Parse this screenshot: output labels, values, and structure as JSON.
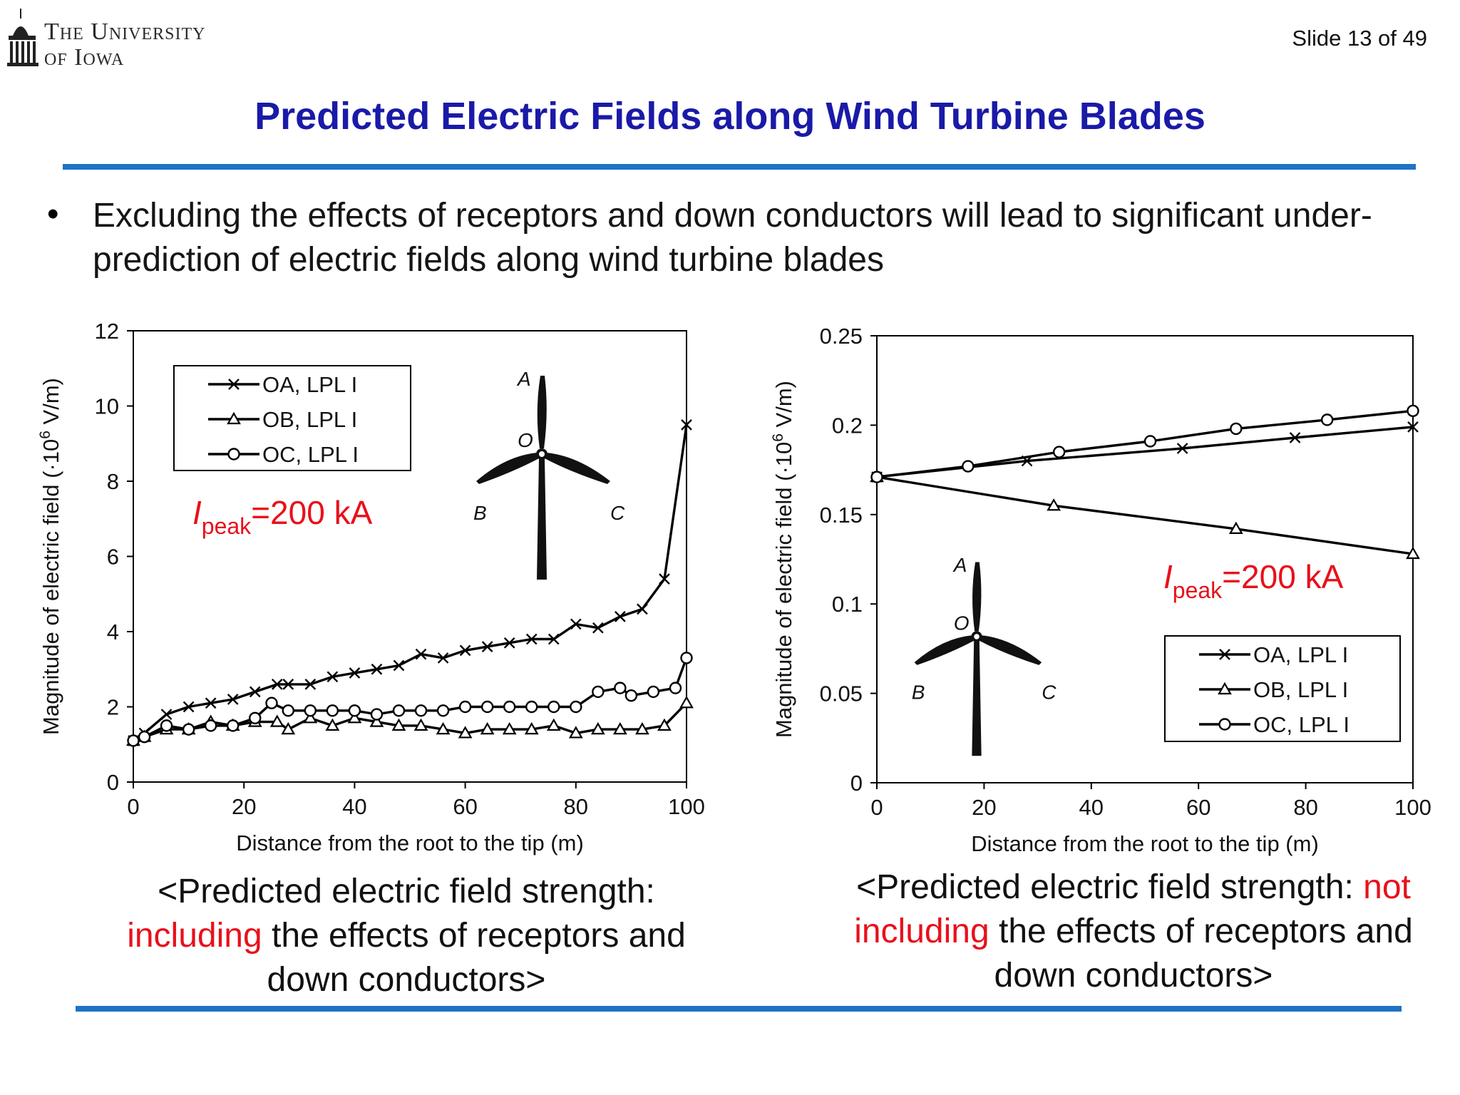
{
  "header": {
    "logo_line1": "The University",
    "logo_line2": "of Iowa",
    "slide_number": "Slide 13 of 49",
    "title": "Predicted Electric Fields along Wind Turbine Blades"
  },
  "bullet": "Excluding the effects of receptors and down conductors will lead to significant under-prediction of electric fields along wind turbine blades",
  "captions": {
    "left": {
      "pre": "<Predicted electric field strength: ",
      "red": "including",
      "post": " the effects of receptors and down conductors>"
    },
    "right": {
      "pre": "<Predicted electric field strength: ",
      "red": "not including",
      "post": " the effects of receptors and down conductors>"
    }
  },
  "chart_data": [
    {
      "type": "line",
      "xlabel": "Distance from the root to the tip (m)",
      "ylabel_pre": "Magnitude of electric field (·10",
      "ylabel_sup": "6",
      "ylabel_post": " V/m)",
      "xlim": [
        0,
        100
      ],
      "ylim": [
        0,
        12
      ],
      "xticks": [
        "0",
        "20",
        "40",
        "60",
        "80",
        "100"
      ],
      "yticks": [
        "0",
        "2",
        "4",
        "6",
        "8",
        "10",
        "12"
      ],
      "legend_placement": "top-left",
      "annotation": {
        "italic": "I",
        "sub": "peak",
        "text": "=200 kA"
      },
      "turbine_labels": [
        "A",
        "O",
        "B",
        "C"
      ],
      "series": [
        {
          "name": "OA, LPL I",
          "marker": "x",
          "x": [
            0,
            2,
            6,
            10,
            14,
            18,
            22,
            26,
            28,
            32,
            36,
            40,
            44,
            48,
            52,
            56,
            60,
            64,
            68,
            72,
            76,
            80,
            84,
            88,
            92,
            96,
            100
          ],
          "y": [
            1.1,
            1.3,
            1.8,
            2.0,
            2.1,
            2.2,
            2.4,
            2.6,
            2.6,
            2.6,
            2.8,
            2.9,
            3.0,
            3.1,
            3.4,
            3.3,
            3.5,
            3.6,
            3.7,
            3.8,
            3.8,
            4.2,
            4.1,
            4.4,
            4.6,
            5.4,
            9.5
          ]
        },
        {
          "name": "OB, LPL I",
          "marker": "triangle",
          "x": [
            0,
            2,
            6,
            10,
            14,
            18,
            22,
            26,
            28,
            32,
            36,
            40,
            44,
            48,
            52,
            56,
            60,
            64,
            68,
            72,
            76,
            80,
            84,
            88,
            92,
            96,
            100
          ],
          "y": [
            1.1,
            1.2,
            1.4,
            1.4,
            1.6,
            1.5,
            1.6,
            1.6,
            1.4,
            1.7,
            1.5,
            1.7,
            1.6,
            1.5,
            1.5,
            1.4,
            1.3,
            1.4,
            1.4,
            1.4,
            1.5,
            1.3,
            1.4,
            1.4,
            1.4,
            1.5,
            2.1
          ]
        },
        {
          "name": "OC, LPL I",
          "marker": "circle",
          "x": [
            0,
            2,
            6,
            10,
            14,
            18,
            22,
            25,
            28,
            32,
            36,
            40,
            44,
            48,
            52,
            56,
            60,
            64,
            68,
            72,
            76,
            80,
            84,
            88,
            90,
            94,
            98,
            100
          ],
          "y": [
            1.1,
            1.2,
            1.5,
            1.4,
            1.5,
            1.5,
            1.7,
            2.1,
            1.9,
            1.9,
            1.9,
            1.9,
            1.8,
            1.9,
            1.9,
            1.9,
            2.0,
            2.0,
            2.0,
            2.0,
            2.0,
            2.0,
            2.4,
            2.5,
            2.3,
            2.4,
            2.5,
            3.3
          ]
        }
      ]
    },
    {
      "type": "line",
      "xlabel": "Distance from the root to the tip (m)",
      "ylabel_pre": "Magnitude of electric field (·10",
      "ylabel_sup": "6",
      "ylabel_post": " V/m)",
      "xlim": [
        0,
        100
      ],
      "ylim": [
        0,
        0.25
      ],
      "xticks": [
        "0",
        "20",
        "40",
        "60",
        "80",
        "100"
      ],
      "yticks": [
        "0",
        "0.05",
        "0.1",
        "0.15",
        "0.2",
        "0.25"
      ],
      "legend_placement": "bottom-right",
      "annotation": {
        "italic": "I",
        "sub": "peak",
        "text": "=200 kA"
      },
      "turbine_labels": [
        "A",
        "O",
        "B",
        "C"
      ],
      "series": [
        {
          "name": "OA, LPL I",
          "marker": "x",
          "x": [
            0,
            28,
            57,
            78,
            100
          ],
          "y": [
            0.171,
            0.18,
            0.187,
            0.193,
            0.199
          ]
        },
        {
          "name": "OB, LPL I",
          "marker": "triangle",
          "x": [
            0,
            33,
            67,
            100
          ],
          "y": [
            0.171,
            0.155,
            0.142,
            0.128
          ]
        },
        {
          "name": "OC, LPL I",
          "marker": "circle",
          "x": [
            0,
            17,
            34,
            51,
            67,
            84,
            100
          ],
          "y": [
            0.171,
            0.177,
            0.185,
            0.191,
            0.198,
            0.203,
            0.208
          ]
        }
      ]
    }
  ]
}
